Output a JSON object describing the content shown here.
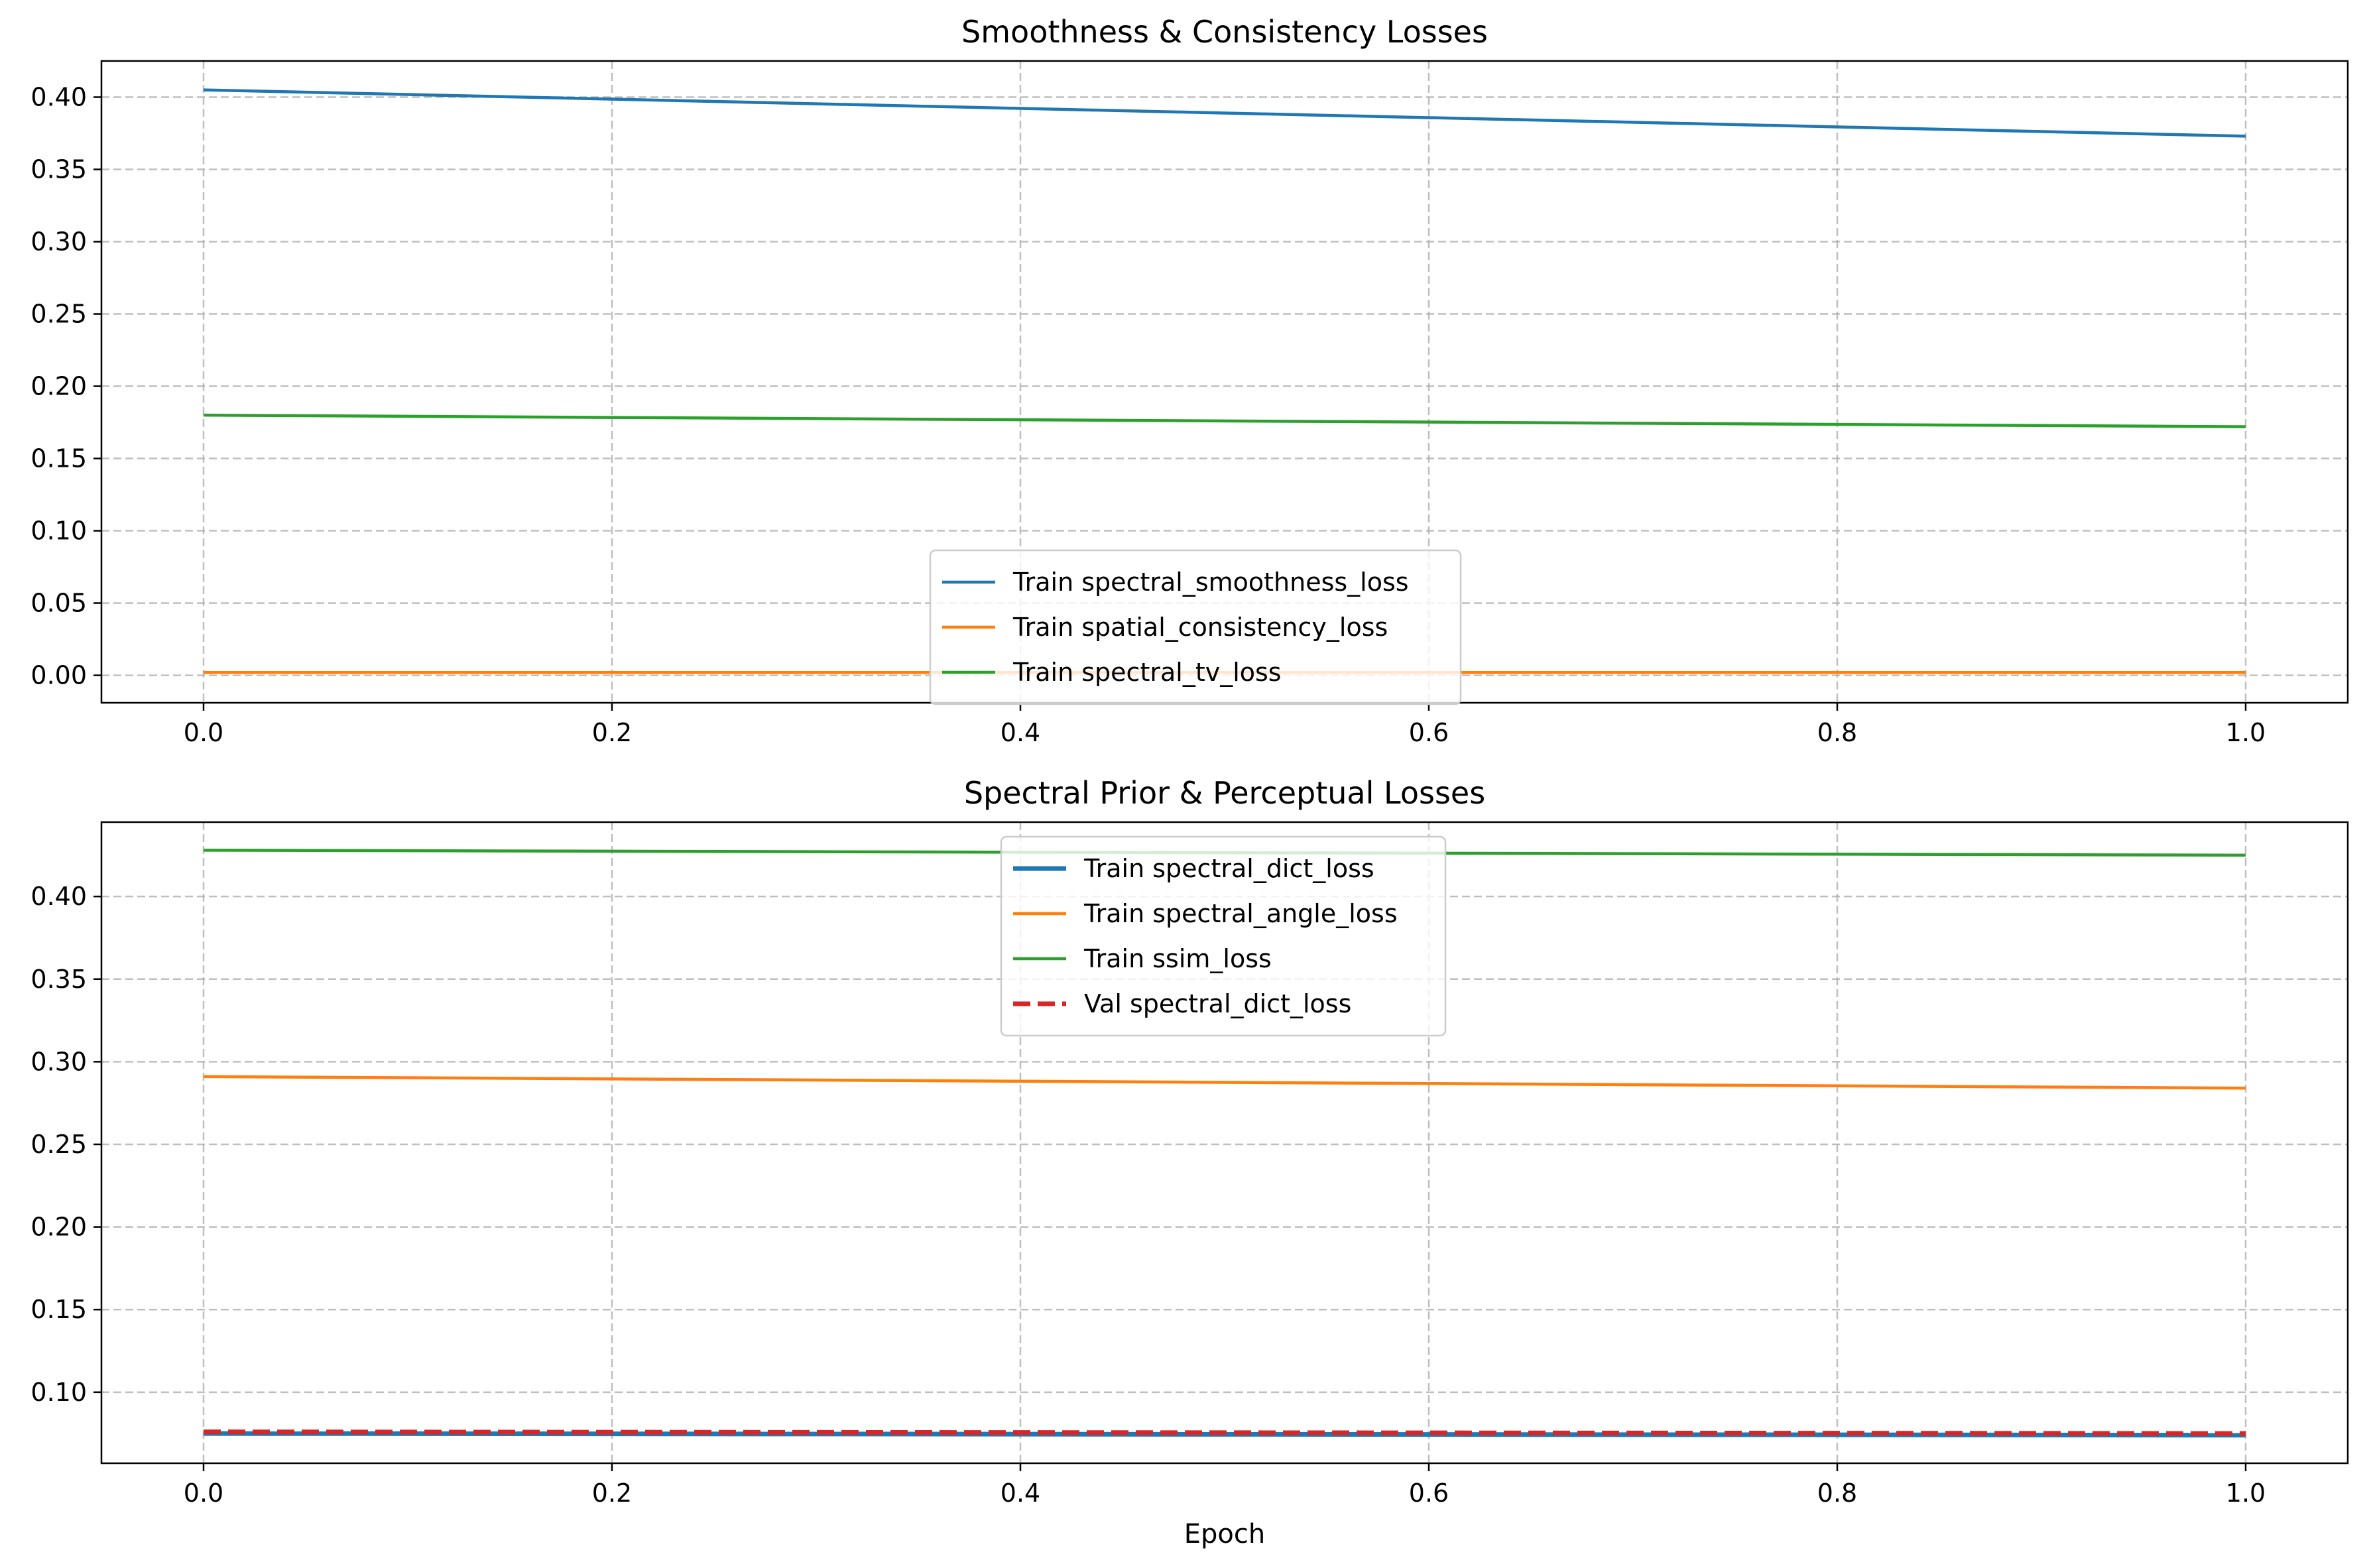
{
  "chart_data": [
    {
      "type": "line",
      "title": "Smoothness & Consistency Losses",
      "xlabel": "",
      "ylabel": "",
      "x": [
        0,
        1
      ],
      "xlim": [
        -0.05,
        1.05
      ],
      "ylim": [
        -0.019,
        0.425
      ],
      "xticks": [
        0.0,
        0.2,
        0.4,
        0.6,
        0.8,
        1.0
      ],
      "xtick_labels": [
        "0.0",
        "0.2",
        "0.4",
        "0.6",
        "0.8",
        "1.0"
      ],
      "yticks": [
        0.0,
        0.05,
        0.1,
        0.15,
        0.2,
        0.25,
        0.3,
        0.35,
        0.4
      ],
      "ytick_labels": [
        "0.00",
        "0.05",
        "0.10",
        "0.15",
        "0.20",
        "0.25",
        "0.30",
        "0.35",
        "0.40"
      ],
      "grid": true,
      "legend_position": "lower-center",
      "series": [
        {
          "name": "Train spectral_smoothness_loss",
          "values": [
            0.405,
            0.373
          ],
          "color": "#1f77b4",
          "dash": "solid"
        },
        {
          "name": "Train spatial_consistency_loss",
          "values": [
            0.002,
            0.002
          ],
          "color": "#ff7f0e",
          "dash": "solid"
        },
        {
          "name": "Train spectral_tv_loss",
          "values": [
            0.18,
            0.172
          ],
          "color": "#2ca02c",
          "dash": "solid"
        }
      ]
    },
    {
      "type": "line",
      "title": "Spectral Prior & Perceptual Losses",
      "xlabel": "Epoch",
      "ylabel": "",
      "x": [
        0,
        1
      ],
      "xlim": [
        -0.05,
        1.05
      ],
      "ylim": [
        0.057,
        0.445
      ],
      "xticks": [
        0.0,
        0.2,
        0.4,
        0.6,
        0.8,
        1.0
      ],
      "xtick_labels": [
        "0.0",
        "0.2",
        "0.4",
        "0.6",
        "0.8",
        "1.0"
      ],
      "yticks": [
        0.1,
        0.15,
        0.2,
        0.25,
        0.3,
        0.35,
        0.4
      ],
      "ytick_labels": [
        "0.10",
        "0.15",
        "0.20",
        "0.25",
        "0.30",
        "0.35",
        "0.40"
      ],
      "grid": true,
      "legend_position": "upper-center",
      "series": [
        {
          "name": "Train spectral_dict_loss",
          "values": [
            0.075,
            0.074
          ],
          "color": "#1f77b4",
          "dash": "solid",
          "width": "thick"
        },
        {
          "name": "Train spectral_angle_loss",
          "values": [
            0.291,
            0.284
          ],
          "color": "#ff7f0e",
          "dash": "solid"
        },
        {
          "name": "Train ssim_loss",
          "values": [
            0.428,
            0.425
          ],
          "color": "#2ca02c",
          "dash": "solid"
        },
        {
          "name": "Val spectral_dict_loss",
          "values": [
            0.076,
            0.075
          ],
          "color": "#d62728",
          "dash": "dashed",
          "width": "thick"
        }
      ]
    }
  ]
}
